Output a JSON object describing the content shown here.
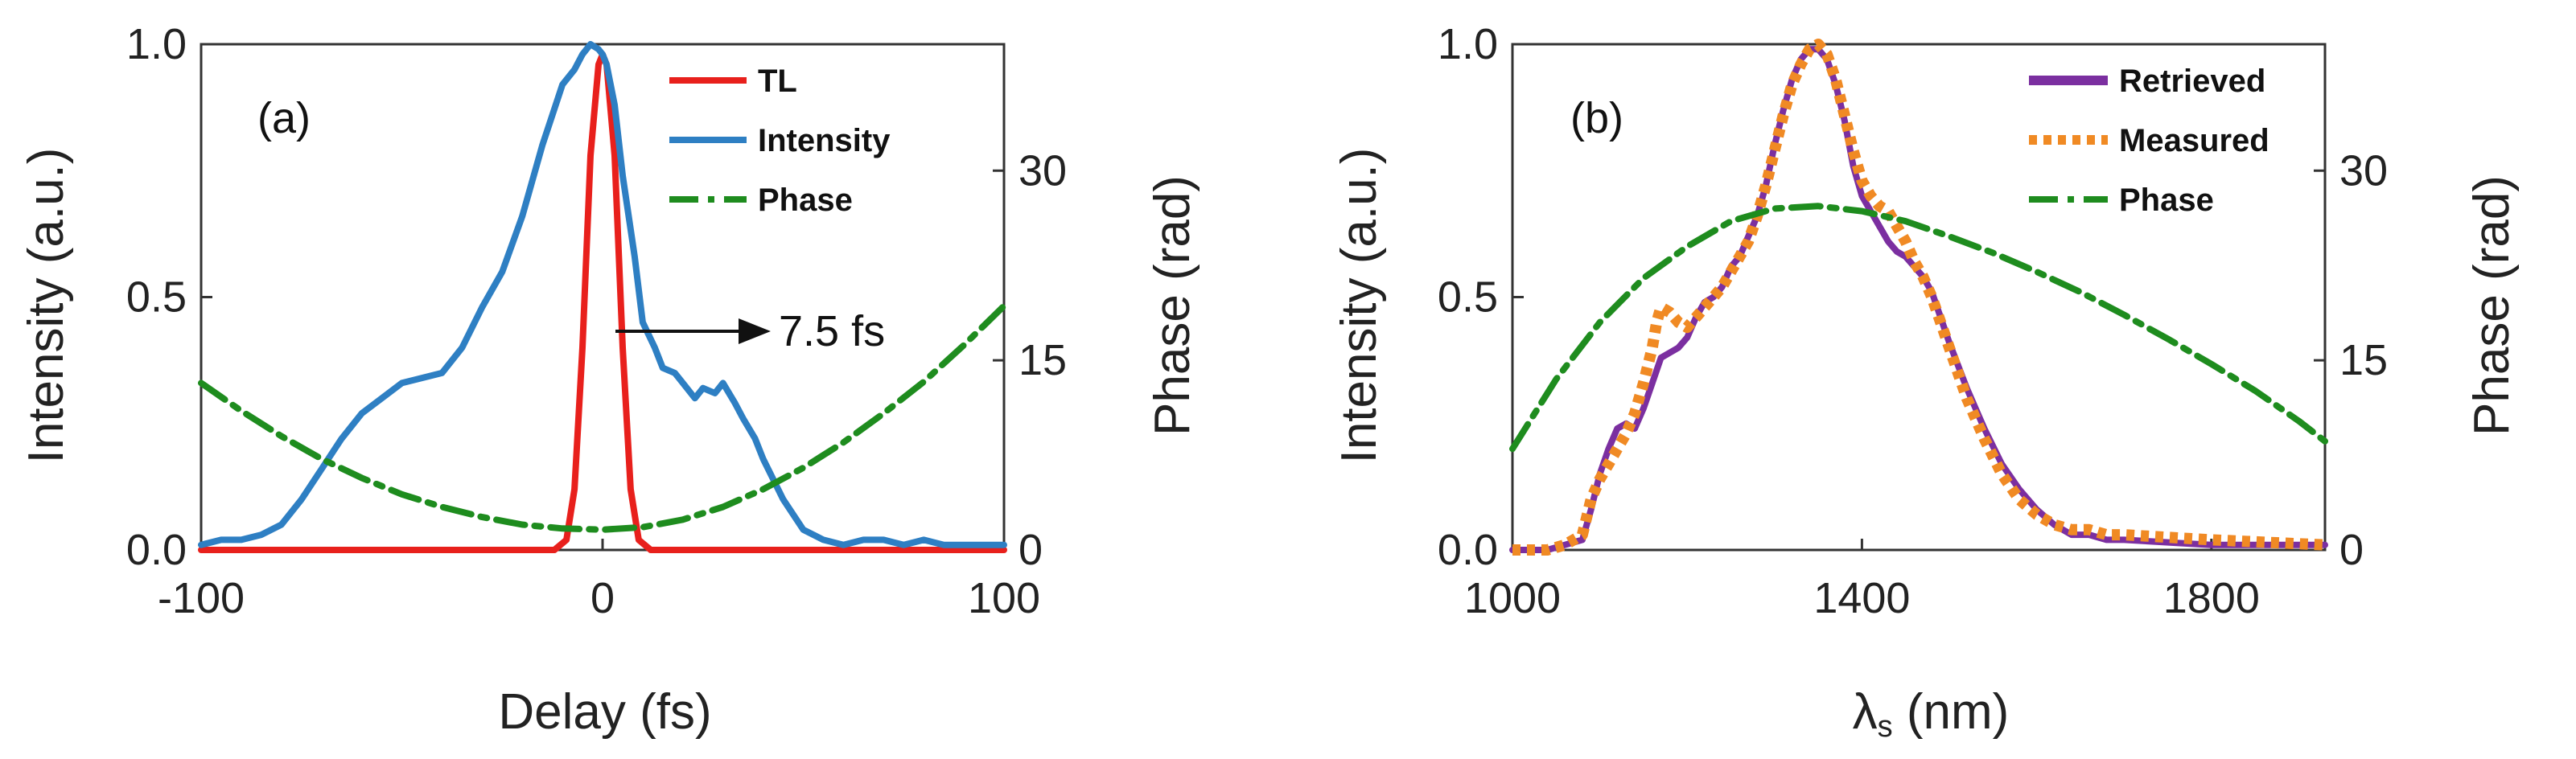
{
  "chart_data": [
    {
      "type": "line",
      "panel_label": "(a)",
      "xlabel": "Delay (fs)",
      "ylabel": "Intensity (a.u.)",
      "ylabel_right": "Phase (rad)",
      "xlim": [
        -100,
        100
      ],
      "ylim": [
        0,
        1
      ],
      "ylim_right": [
        0,
        40
      ],
      "xticks": [
        -100,
        0,
        100
      ],
      "xtick_labels": [
        "-100",
        "0",
        "100"
      ],
      "yticks": [
        0,
        0.5,
        1
      ],
      "ytick_labels": [
        "0.0",
        "0.5",
        "1.0"
      ],
      "yticks_right": [
        0,
        15,
        30
      ],
      "ytick_labels_right": [
        "0",
        "15",
        "30"
      ],
      "annotation": "7.5 fs",
      "series": [
        {
          "name": "TL",
          "axis": "left",
          "color": "#e8201c",
          "style": "solid",
          "x": [
            -100,
            -12,
            -9,
            -7,
            -5,
            -3,
            -1,
            0,
            1,
            3,
            5,
            7,
            9,
            12,
            100
          ],
          "y": [
            0,
            0,
            0.02,
            0.12,
            0.4,
            0.78,
            0.96,
            0.98,
            0.96,
            0.78,
            0.4,
            0.12,
            0.02,
            0,
            0
          ]
        },
        {
          "name": "Intensity",
          "axis": "left",
          "color": "#2e7fc3",
          "style": "solid",
          "x": [
            -100,
            -95,
            -90,
            -85,
            -80,
            -75,
            -70,
            -65,
            -60,
            -55,
            -50,
            -45,
            -40,
            -35,
            -30,
            -25,
            -20,
            -15,
            -10,
            -7,
            -5,
            -3,
            -1,
            0,
            1,
            3,
            5,
            8,
            10,
            13,
            15,
            18,
            20,
            23,
            25,
            28,
            30,
            33,
            35,
            38,
            40,
            45,
            50,
            55,
            60,
            65,
            70,
            75,
            80,
            85,
            90,
            95,
            100
          ],
          "y": [
            0.01,
            0.02,
            0.02,
            0.03,
            0.05,
            0.1,
            0.16,
            0.22,
            0.27,
            0.3,
            0.33,
            0.34,
            0.35,
            0.4,
            0.48,
            0.55,
            0.66,
            0.8,
            0.92,
            0.95,
            0.98,
            1.0,
            0.99,
            0.98,
            0.96,
            0.88,
            0.74,
            0.58,
            0.45,
            0.4,
            0.36,
            0.35,
            0.33,
            0.3,
            0.32,
            0.31,
            0.33,
            0.29,
            0.26,
            0.22,
            0.18,
            0.1,
            0.04,
            0.02,
            0.01,
            0.02,
            0.02,
            0.01,
            0.02,
            0.01,
            0.01,
            0.01,
            0.01
          ]
        },
        {
          "name": "Phase",
          "axis": "right",
          "color": "#1e8c1e",
          "style": "dashdot",
          "x": [
            -100,
            -90,
            -80,
            -70,
            -60,
            -50,
            -40,
            -30,
            -20,
            -10,
            0,
            10,
            20,
            30,
            40,
            50,
            60,
            70,
            80,
            90,
            100
          ],
          "y": [
            13.2,
            11.0,
            9.0,
            7.2,
            5.7,
            4.4,
            3.4,
            2.6,
            2.0,
            1.7,
            1.6,
            1.8,
            2.4,
            3.4,
            4.8,
            6.5,
            8.5,
            10.8,
            13.3,
            16.2,
            19.3
          ]
        }
      ]
    },
    {
      "type": "line",
      "panel_label": "(b)",
      "xlabel_symbol": "λ",
      "xlabel_sub": "s",
      "xlabel_rest": " (nm)",
      "ylabel": "Intensity (a.u.)",
      "ylabel_right": "Phase (rad)",
      "xlim": [
        1000,
        1930
      ],
      "ylim": [
        0,
        1
      ],
      "ylim_right": [
        0,
        40
      ],
      "xticks": [
        1000,
        1400,
        1800
      ],
      "xtick_labels": [
        "1000",
        "1400",
        "1800"
      ],
      "yticks": [
        0,
        0.5,
        1
      ],
      "ytick_labels": [
        "0.0",
        "0.5",
        "1.0"
      ],
      "yticks_right": [
        0,
        15,
        30
      ],
      "ytick_labels_right": [
        "0",
        "15",
        "30"
      ],
      "series": [
        {
          "name": "Retrieved",
          "axis": "left",
          "color": "#7b2fa0",
          "style": "solid",
          "x": [
            1000,
            1040,
            1060,
            1080,
            1090,
            1100,
            1110,
            1120,
            1130,
            1140,
            1150,
            1160,
            1170,
            1180,
            1190,
            1200,
            1210,
            1220,
            1230,
            1240,
            1250,
            1260,
            1270,
            1280,
            1290,
            1300,
            1310,
            1320,
            1330,
            1340,
            1350,
            1360,
            1370,
            1380,
            1390,
            1400,
            1410,
            1420,
            1430,
            1440,
            1450,
            1460,
            1470,
            1480,
            1490,
            1500,
            1520,
            1540,
            1560,
            1580,
            1600,
            1620,
            1640,
            1660,
            1680,
            1700,
            1800,
            1930
          ],
          "y": [
            0,
            0,
            0.01,
            0.02,
            0.08,
            0.15,
            0.2,
            0.24,
            0.25,
            0.24,
            0.28,
            0.33,
            0.38,
            0.39,
            0.4,
            0.42,
            0.46,
            0.49,
            0.5,
            0.52,
            0.56,
            0.58,
            0.62,
            0.66,
            0.72,
            0.8,
            0.87,
            0.93,
            0.97,
            0.99,
            0.99,
            0.97,
            0.92,
            0.85,
            0.76,
            0.7,
            0.67,
            0.64,
            0.61,
            0.59,
            0.58,
            0.56,
            0.54,
            0.51,
            0.46,
            0.41,
            0.32,
            0.24,
            0.17,
            0.12,
            0.08,
            0.05,
            0.03,
            0.03,
            0.02,
            0.02,
            0.01,
            0.01
          ]
        },
        {
          "name": "Measured",
          "axis": "left",
          "color": "#f08a24",
          "style": "dotted",
          "x": [
            1000,
            1040,
            1060,
            1080,
            1090,
            1100,
            1110,
            1120,
            1130,
            1140,
            1150,
            1160,
            1165,
            1170,
            1180,
            1190,
            1200,
            1210,
            1220,
            1230,
            1240,
            1250,
            1260,
            1270,
            1280,
            1290,
            1300,
            1310,
            1320,
            1330,
            1340,
            1350,
            1360,
            1370,
            1380,
            1390,
            1400,
            1410,
            1420,
            1430,
            1440,
            1450,
            1460,
            1470,
            1480,
            1490,
            1500,
            1520,
            1540,
            1560,
            1580,
            1600,
            1620,
            1640,
            1660,
            1680,
            1700,
            1800,
            1930
          ],
          "y": [
            0,
            0,
            0.01,
            0.03,
            0.1,
            0.14,
            0.17,
            0.2,
            0.23,
            0.27,
            0.33,
            0.4,
            0.45,
            0.48,
            0.47,
            0.45,
            0.44,
            0.46,
            0.48,
            0.5,
            0.52,
            0.55,
            0.58,
            0.61,
            0.66,
            0.72,
            0.79,
            0.86,
            0.92,
            0.96,
            0.99,
            1.0,
            0.98,
            0.93,
            0.86,
            0.79,
            0.73,
            0.7,
            0.68,
            0.67,
            0.64,
            0.61,
            0.57,
            0.54,
            0.5,
            0.45,
            0.4,
            0.3,
            0.22,
            0.15,
            0.1,
            0.07,
            0.05,
            0.04,
            0.04,
            0.03,
            0.03,
            0.02,
            0.01
          ]
        },
        {
          "name": "Phase",
          "axis": "right",
          "color": "#1e8c1e",
          "style": "dashdot",
          "x": [
            1000,
            1050,
            1100,
            1150,
            1200,
            1250,
            1300,
            1350,
            1400,
            1450,
            1500,
            1550,
            1600,
            1650,
            1700,
            1750,
            1800,
            1850,
            1900,
            1930
          ],
          "y": [
            8.0,
            13.5,
            18.0,
            21.5,
            24.0,
            26.0,
            27.0,
            27.2,
            26.8,
            26.0,
            24.8,
            23.5,
            22.0,
            20.4,
            18.6,
            16.7,
            14.7,
            12.6,
            10.2,
            8.6
          ]
        }
      ]
    }
  ]
}
